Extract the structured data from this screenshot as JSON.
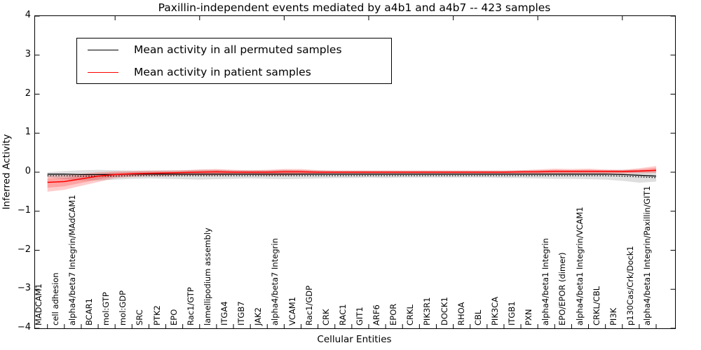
{
  "figure": {
    "title": "Paxillin-independent events mediated by a4b1 and a4b7 -- 423 samples"
  },
  "chart_data": {
    "type": "line",
    "title": "Paxillin-independent events mediated by a4b1 and a4b7 -- 423 samples",
    "xlabel": "Cellular Entities",
    "ylabel": "Inferred Activity",
    "ylim": [
      -4,
      4
    ],
    "ytick_labels": [
      "4",
      "3",
      "2",
      "1",
      "0",
      "−1",
      "−2",
      "−3",
      "−4"
    ],
    "ytick_values": [
      4,
      3,
      2,
      1,
      0,
      -1,
      -2,
      -3,
      -4
    ],
    "grid": false,
    "legend": {
      "position": "upper-left",
      "entries": [
        {
          "label": "Mean activity in all permuted samples",
          "color": "#000000"
        },
        {
          "label": "Mean activity in patient samples",
          "color": "#ff0000"
        }
      ]
    },
    "categories": [
      "MADCAM1",
      "cell adhesion",
      "alpha4/beta7 Integrin/MAdCAM1",
      "BCAR1",
      "mol:GTP",
      "mol:GDP",
      "SRC",
      "PTK2",
      "EPO",
      "Rac1/GTP",
      "lamellipodium assembly",
      "ITGA4",
      "ITGB7",
      "JAK2",
      "alpha4/beta7 Integrin",
      "VCAM1",
      "Rac1/GDP",
      "CRK",
      "RAC1",
      "GIT1",
      "ARF6",
      "EPOR",
      "CRKL",
      "PIK3R1",
      "DOCK1",
      "RHOA",
      "CBL",
      "PIK3CA",
      "ITGB1",
      "PXN",
      "alpha4/beta1 Integrin",
      "EPO/EPOR (dimer)",
      "alpha4/beta1 Integrin/VCAM1",
      "CRKL/CBL",
      "PI3K",
      "p130Cas/Crk/Dock1",
      "alpha4/beta1 Integrin/Paxillin/GIT1"
    ],
    "top_tick_indices": [
      4,
      9,
      14,
      19,
      24,
      29,
      34
    ],
    "series": [
      {
        "name": "Mean activity in all permuted samples",
        "color": "#000000",
        "style": "solid",
        "values": [
          -0.05,
          -0.05,
          -0.06,
          -0.06,
          -0.06,
          -0.05,
          -0.05,
          -0.05,
          -0.05,
          -0.05,
          -0.05,
          -0.05,
          -0.05,
          -0.05,
          -0.05,
          -0.05,
          -0.05,
          -0.05,
          -0.05,
          -0.05,
          -0.05,
          -0.05,
          -0.05,
          -0.05,
          -0.05,
          -0.05,
          -0.05,
          -0.05,
          -0.05,
          -0.05,
          -0.05,
          -0.05,
          -0.05,
          -0.05,
          -0.06,
          -0.08,
          -0.1
        ]
      },
      {
        "name": "black-dotted-trace",
        "color": "#000000",
        "style": "dotted",
        "values": [
          -0.09,
          -0.09,
          -0.1,
          -0.1,
          -0.1,
          -0.09,
          -0.09,
          -0.09,
          -0.09,
          -0.09,
          -0.09,
          -0.09,
          -0.09,
          -0.09,
          -0.09,
          -0.09,
          -0.09,
          -0.09,
          -0.09,
          -0.09,
          -0.09,
          -0.09,
          -0.09,
          -0.09,
          -0.09,
          -0.09,
          -0.09,
          -0.09,
          -0.09,
          -0.09,
          -0.09,
          -0.09,
          -0.09,
          -0.09,
          -0.1,
          -0.12,
          -0.14
        ]
      },
      {
        "name": "Mean activity in patient samples",
        "color": "#ff0000",
        "style": "solid",
        "values": [
          -0.26,
          -0.24,
          -0.17,
          -0.1,
          -0.06,
          -0.04,
          -0.03,
          -0.02,
          -0.01,
          0.0,
          0.01,
          0.0,
          0.0,
          0.0,
          0.01,
          0.01,
          0.0,
          0.0,
          0.0,
          0.0,
          0.0,
          0.0,
          0.0,
          0.0,
          0.0,
          0.0,
          0.0,
          0.0,
          0.01,
          0.01,
          0.02,
          0.02,
          0.02,
          0.02,
          0.02,
          0.03,
          0.05
        ]
      }
    ],
    "bands": [
      {
        "name": "permuted-samples-band",
        "color": "#000000",
        "alpha": 0.13,
        "upper": [
          0.0,
          0.03,
          0.05,
          0.06,
          0.05,
          0.04,
          0.04,
          0.05,
          0.05,
          0.06,
          0.06,
          0.05,
          0.05,
          0.05,
          0.06,
          0.05,
          0.05,
          0.04,
          0.04,
          0.04,
          0.04,
          0.04,
          0.04,
          0.04,
          0.04,
          0.04,
          0.04,
          0.04,
          0.05,
          0.05,
          0.05,
          0.05,
          0.05,
          0.05,
          0.06,
          0.06,
          0.05
        ],
        "lower": [
          -0.13,
          -0.18,
          -0.21,
          -0.21,
          -0.19,
          -0.17,
          -0.16,
          -0.17,
          -0.18,
          -0.19,
          -0.18,
          -0.17,
          -0.16,
          -0.17,
          -0.18,
          -0.17,
          -0.16,
          -0.15,
          -0.15,
          -0.14,
          -0.15,
          -0.14,
          -0.14,
          -0.14,
          -0.14,
          -0.14,
          -0.14,
          -0.15,
          -0.15,
          -0.16,
          -0.17,
          -0.17,
          -0.18,
          -0.19,
          -0.22,
          -0.27,
          -0.24
        ]
      },
      {
        "name": "patient-samples-band",
        "color": "#ff0000",
        "alpha": 0.2,
        "upper": [
          -0.08,
          -0.08,
          -0.04,
          0.0,
          0.02,
          0.03,
          0.04,
          0.04,
          0.05,
          0.07,
          0.08,
          0.06,
          0.05,
          0.06,
          0.08,
          0.08,
          0.05,
          0.04,
          0.04,
          0.04,
          0.04,
          0.04,
          0.04,
          0.04,
          0.04,
          0.04,
          0.04,
          0.04,
          0.05,
          0.07,
          0.09,
          0.08,
          0.09,
          0.07,
          0.06,
          0.1,
          0.16
        ],
        "lower": [
          -0.5,
          -0.45,
          -0.35,
          -0.25,
          -0.15,
          -0.12,
          -0.1,
          -0.1,
          -0.08,
          -0.08,
          -0.08,
          -0.07,
          -0.07,
          -0.08,
          -0.08,
          -0.07,
          -0.06,
          -0.05,
          -0.05,
          -0.05,
          -0.05,
          -0.05,
          -0.05,
          -0.05,
          -0.05,
          -0.05,
          -0.05,
          -0.05,
          -0.05,
          -0.05,
          -0.05,
          -0.05,
          -0.04,
          -0.04,
          -0.04,
          -0.03,
          -0.02
        ]
      }
    ]
  }
}
